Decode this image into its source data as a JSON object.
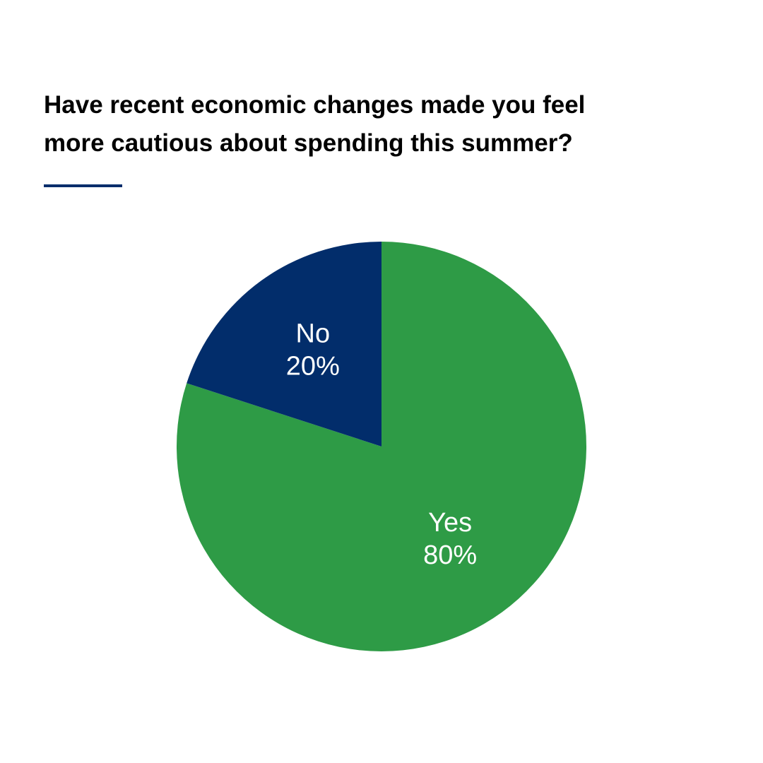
{
  "chart_data": {
    "type": "pie",
    "title": "Have recent economic changes made you feel more cautious about spending this summer?",
    "categories": [
      "Yes",
      "No"
    ],
    "values": [
      80,
      20
    ],
    "value_labels": [
      "80%",
      "20%"
    ],
    "colors": [
      "#2e9b46",
      "#022d6b"
    ]
  }
}
